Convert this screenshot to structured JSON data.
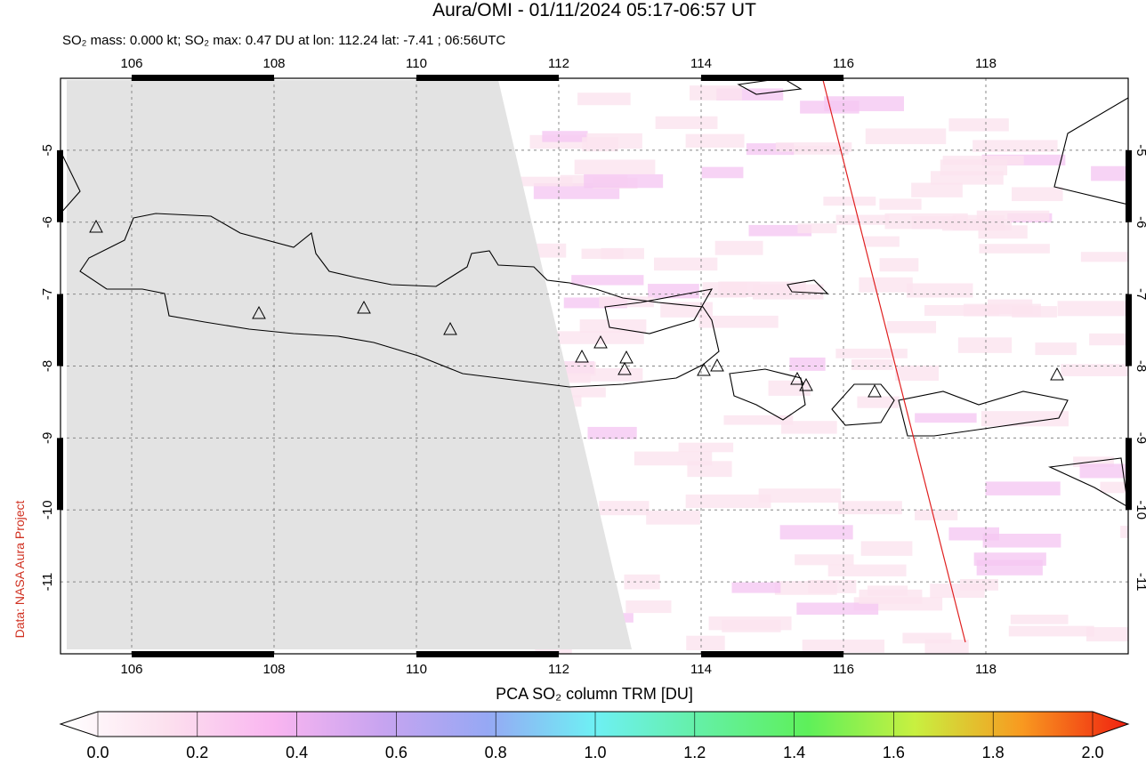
{
  "header": {
    "title": "Aura/OMI - 01/11/2024 05:17-06:57 UT",
    "subtitle": "SO₂ mass: 0.000 kt; SO₂ max: 0.47 DU at lon: 112.24 lat: -7.41 ; 06:56UTC"
  },
  "credit": "Data: NASA Aura Project",
  "map": {
    "xlim": [
      105,
      120
    ],
    "ylim": [
      -4,
      -12
    ],
    "xticks": [
      106,
      108,
      110,
      112,
      114,
      116,
      118
    ],
    "yticks": [
      -5,
      -6,
      -7,
      -8,
      -9,
      -10,
      -11
    ]
  },
  "colorbar": {
    "label": "PCA SO₂ column TRM [DU]",
    "lim": [
      0,
      2
    ],
    "ticks": [
      {
        "value": 0,
        "label": "0.0"
      },
      {
        "value": 0.2,
        "label": "0.2"
      },
      {
        "value": 0.4,
        "label": "0.4"
      },
      {
        "value": 0.6,
        "label": "0.6"
      },
      {
        "value": 0.8,
        "label": "0.8"
      },
      {
        "value": 1,
        "label": "1.0"
      },
      {
        "value": 1.2,
        "label": "1.2"
      },
      {
        "value": 1.4,
        "label": "1.4"
      },
      {
        "value": 1.6,
        "label": "1.6"
      },
      {
        "value": 1.8,
        "label": "1.8"
      },
      {
        "value": 2,
        "label": "2.0"
      }
    ]
  }
}
